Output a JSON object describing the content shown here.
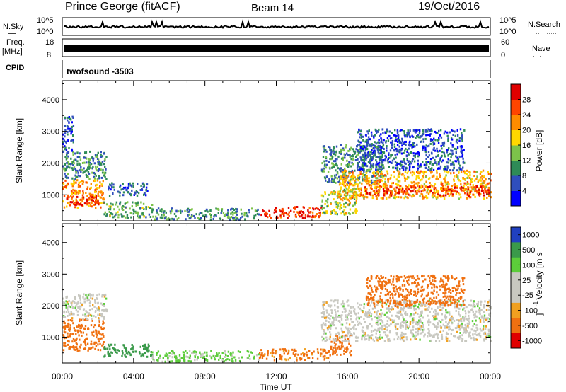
{
  "header": {
    "station": "Prince George (fitACF)",
    "beam": "Beam 14",
    "date": "19/Oct/2016"
  },
  "strips": {
    "nsky_label": "N.Sky",
    "nsky_ticks": [
      "10^5",
      "10^0"
    ],
    "nsearch_label": "N.Search",
    "nsearch_ticks": [
      "10^5",
      "10^0"
    ],
    "freq_label": "Freq.",
    "freq_unit": "[MHz]",
    "freq_ticks": [
      "18",
      "8"
    ],
    "nave_label": "Nave",
    "nave_ticks": [
      "60",
      "0"
    ],
    "cpid_label": "CPID",
    "cpid_value": "twofsound -3503"
  },
  "chart_data": [
    {
      "type": "heatmap",
      "title": "",
      "xlabel": "",
      "ylabel": "Slant Range [km]",
      "x_range": [
        "00:00",
        "24:00"
      ],
      "ylim": [
        180,
        4600
      ],
      "y_ticks": [
        1000,
        2000,
        3000,
        4000
      ],
      "colorbar": {
        "label": "Power [dB]",
        "ticks": [
          4,
          8,
          12,
          16,
          20,
          24,
          28
        ],
        "colors": [
          "#0000ff",
          "#2f4ebc",
          "#2e8b57",
          "#7cc24a",
          "#ffd700",
          "#ff8c00",
          "#ff4500",
          "#e00000"
        ]
      },
      "regions": [
        {
          "t": [
            0.0,
            2.3
          ],
          "r": [
            600,
            1500
          ],
          "v": 22
        },
        {
          "t": [
            0.2,
            2.0
          ],
          "r": [
            700,
            1000
          ],
          "v": 29
        },
        {
          "t": [
            0.0,
            2.5
          ],
          "r": [
            1500,
            2400
          ],
          "v": 10
        },
        {
          "t": [
            0.0,
            0.6
          ],
          "r": [
            2400,
            3500
          ],
          "v": 6
        },
        {
          "t": [
            2.3,
            5.0
          ],
          "r": [
            300,
            800
          ],
          "v": 12
        },
        {
          "t": [
            2.5,
            4.8
          ],
          "r": [
            1000,
            1400
          ],
          "v": 7
        },
        {
          "t": [
            5.0,
            11.0
          ],
          "r": [
            250,
            600
          ],
          "v": 10
        },
        {
          "t": [
            11.0,
            14.5
          ],
          "r": [
            300,
            650
          ],
          "v": 28
        },
        {
          "t": [
            14.5,
            16.5
          ],
          "r": [
            400,
            1200
          ],
          "v": 16
        },
        {
          "t": [
            14.5,
            18.0
          ],
          "r": [
            1400,
            2600
          ],
          "v": 9
        },
        {
          "t": [
            15.5,
            24.0
          ],
          "r": [
            900,
            1800
          ],
          "v": 20
        },
        {
          "t": [
            16.5,
            24.0
          ],
          "r": [
            1000,
            1300
          ],
          "v": 27
        },
        {
          "t": [
            16.5,
            22.5
          ],
          "r": [
            1800,
            3100
          ],
          "v": 6
        }
      ]
    },
    {
      "type": "heatmap",
      "title": "",
      "xlabel": "Time UT",
      "ylabel": "Slant Range [km]",
      "x_range": [
        "00:00",
        "24:00"
      ],
      "ylim": [
        180,
        4600
      ],
      "y_ticks": [
        1000,
        2000,
        3000,
        4000
      ],
      "x_ticks": [
        "00:00",
        "04:00",
        "08:00",
        "12:00",
        "16:00",
        "20:00",
        "00:00"
      ],
      "colorbar": {
        "label": "Velocity [m s^-1]",
        "ticks": [
          1000,
          500,
          100,
          25,
          -25,
          -100,
          -500,
          -1000
        ],
        "colors": [
          "#2040c0",
          "#3a9a4a",
          "#5ccd3a",
          "#c8c8c0",
          "#c8c8c0",
          "#f0a020",
          "#f07010",
          "#e00000"
        ]
      },
      "regions": [
        {
          "t": [
            0.0,
            2.3
          ],
          "r": [
            600,
            1600
          ],
          "v": -150
        },
        {
          "t": [
            0.0,
            2.5
          ],
          "r": [
            1600,
            2400
          ],
          "v": 0
        },
        {
          "t": [
            2.3,
            5.0
          ],
          "r": [
            400,
            800
          ],
          "v": 150
        },
        {
          "t": [
            5.0,
            11.0
          ],
          "r": [
            250,
            600
          ],
          "v": 40
        },
        {
          "t": [
            11.0,
            15.0
          ],
          "r": [
            300,
            650
          ],
          "v": -120
        },
        {
          "t": [
            15.0,
            16.2
          ],
          "r": [
            450,
            1100
          ],
          "v": -200
        },
        {
          "t": [
            14.5,
            24.0
          ],
          "r": [
            900,
            2200
          ],
          "v": 0
        },
        {
          "t": [
            17.0,
            22.5
          ],
          "r": [
            2000,
            3000
          ],
          "v": -300
        }
      ]
    }
  ]
}
